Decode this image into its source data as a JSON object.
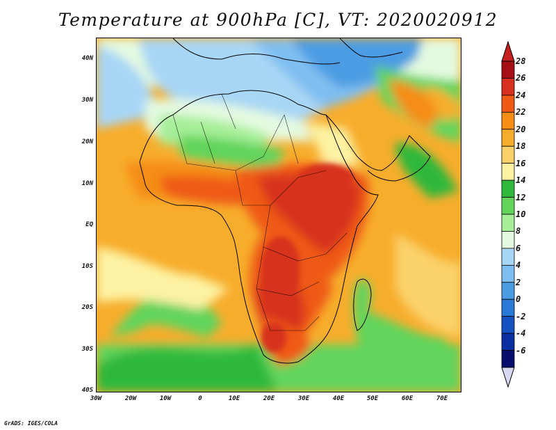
{
  "title": "Temperature at 900hPa [C], VT: 2020020912",
  "footer": "GrADS: IGES/COLA",
  "map": {
    "region": "Africa",
    "variable": "Temperature",
    "level": "900hPa",
    "units": "C",
    "valid_time": "2020020912",
    "lat_labels": [
      "40N",
      "30N",
      "20N",
      "10N",
      "EQ",
      "10S",
      "20S",
      "30S",
      "40S"
    ],
    "lon_labels": [
      "30W",
      "20W",
      "10W",
      "0",
      "10E",
      "20E",
      "30E",
      "40E",
      "50E",
      "60E",
      "70E"
    ]
  },
  "colorbar": {
    "labels": [
      "28",
      "26",
      "24",
      "22",
      "20",
      "18",
      "16",
      "14",
      "12",
      "10",
      "8",
      "6",
      "4",
      "2",
      "0",
      "-2",
      "-4",
      "-6"
    ],
    "colors": [
      "#a50f15",
      "#d7301f",
      "#ef5a14",
      "#f58d16",
      "#f7ad2c",
      "#fbd16b",
      "#fdf2a3",
      "#2fb83b",
      "#62d45b",
      "#a6ee98",
      "#e4fae0",
      "#a8d6f5",
      "#7fbef0",
      "#4b9ce2",
      "#2b79d6",
      "#1551c0",
      "#0a2fa0",
      "#050f6b"
    ],
    "min_color": "#d8d8f2",
    "max_color": "#c41e1e"
  }
}
